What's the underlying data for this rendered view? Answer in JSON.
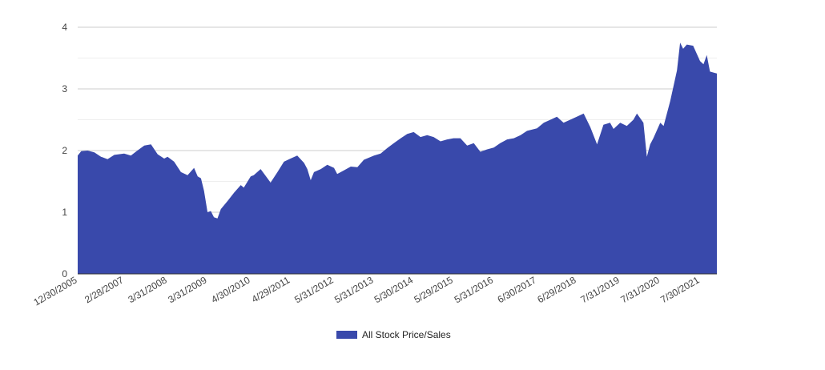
{
  "chart_data": {
    "type": "area",
    "title": "",
    "xlabel": "",
    "ylabel": "",
    "ylim": [
      0,
      4
    ],
    "yticks": [
      "0",
      "1",
      "2",
      "3",
      "4"
    ],
    "ytick_values": [
      0,
      1,
      2,
      3,
      4
    ],
    "grid": true,
    "legend_position": "bottom-center",
    "x_tick_labels": [
      "12/30/2005",
      "2/28/2007",
      "3/31/2008",
      "3/31/2009",
      "4/30/2010",
      "4/29/2011",
      "5/31/2012",
      "5/31/2013",
      "5/30/2014",
      "5/29/2015",
      "5/31/2016",
      "6/30/2017",
      "6/29/2018",
      "7/31/2019",
      "7/31/2020",
      "7/30/2021"
    ],
    "x_range": [
      "12/30/2005",
      "12/31/2021"
    ],
    "series": [
      {
        "name": "All Stock Price/Sales",
        "color": "#3949ab",
        "points": [
          [
            "12/30/2005",
            1.92
          ],
          [
            "1/31/2006",
            1.99
          ],
          [
            "3/31/2006",
            2.0
          ],
          [
            "5/31/2006",
            1.97
          ],
          [
            "7/31/2006",
            1.9
          ],
          [
            "9/29/2006",
            1.86
          ],
          [
            "11/30/2006",
            1.93
          ],
          [
            "2/28/2007",
            1.95
          ],
          [
            "4/30/2007",
            1.92
          ],
          [
            "6/29/2007",
            2.0
          ],
          [
            "8/31/2007",
            2.08
          ],
          [
            "10/31/2007",
            2.1
          ],
          [
            "12/31/2007",
            1.94
          ],
          [
            "2/29/2008",
            1.87
          ],
          [
            "3/31/2008",
            1.9
          ],
          [
            "5/30/2008",
            1.82
          ],
          [
            "7/31/2008",
            1.65
          ],
          [
            "9/30/2008",
            1.6
          ],
          [
            "11/28/2008",
            1.72
          ],
          [
            "12/31/2008",
            1.58
          ],
          [
            "1/30/2009",
            1.55
          ],
          [
            "2/27/2009",
            1.35
          ],
          [
            "3/31/2009",
            1.0
          ],
          [
            "4/30/2009",
            1.02
          ],
          [
            "5/29/2009",
            0.92
          ],
          [
            "6/30/2009",
            0.9
          ],
          [
            "7/31/2009",
            1.05
          ],
          [
            "9/30/2009",
            1.18
          ],
          [
            "11/30/2009",
            1.32
          ],
          [
            "1/29/2010",
            1.44
          ],
          [
            "2/26/2010",
            1.4
          ],
          [
            "4/30/2010",
            1.58
          ],
          [
            "5/28/2010",
            1.6
          ],
          [
            "7/30/2010",
            1.7
          ],
          [
            "9/30/2010",
            1.55
          ],
          [
            "10/29/2010",
            1.48
          ],
          [
            "12/31/2010",
            1.65
          ],
          [
            "2/28/2011",
            1.82
          ],
          [
            "4/29/2011",
            1.87
          ],
          [
            "6/30/2011",
            1.92
          ],
          [
            "8/31/2011",
            1.8
          ],
          [
            "9/30/2011",
            1.7
          ],
          [
            "10/31/2011",
            1.52
          ],
          [
            "11/30/2011",
            1.65
          ],
          [
            "1/31/2012",
            1.7
          ],
          [
            "3/30/2012",
            1.77
          ],
          [
            "5/31/2012",
            1.72
          ],
          [
            "6/29/2012",
            1.62
          ],
          [
            "8/31/2012",
            1.68
          ],
          [
            "10/31/2012",
            1.74
          ],
          [
            "12/31/2012",
            1.73
          ],
          [
            "2/28/2013",
            1.85
          ],
          [
            "5/31/2013",
            1.92
          ],
          [
            "7/31/2013",
            1.95
          ],
          [
            "9/30/2013",
            2.04
          ],
          [
            "11/29/2013",
            2.12
          ],
          [
            "1/31/2014",
            2.2
          ],
          [
            "3/31/2014",
            2.27
          ],
          [
            "5/30/2014",
            2.3
          ],
          [
            "7/31/2014",
            2.22
          ],
          [
            "9/30/2014",
            2.25
          ],
          [
            "11/28/2014",
            2.22
          ],
          [
            "1/30/2015",
            2.15
          ],
          [
            "3/31/2015",
            2.18
          ],
          [
            "5/29/2015",
            2.2
          ],
          [
            "7/31/2015",
            2.2
          ],
          [
            "9/30/2015",
            2.08
          ],
          [
            "11/30/2015",
            2.12
          ],
          [
            "1/29/2016",
            1.98
          ],
          [
            "3/31/2016",
            2.02
          ],
          [
            "5/31/2016",
            2.05
          ],
          [
            "7/29/2016",
            2.12
          ],
          [
            "9/30/2016",
            2.18
          ],
          [
            "11/30/2016",
            2.2
          ],
          [
            "1/31/2017",
            2.25
          ],
          [
            "3/31/2017",
            2.32
          ],
          [
            "6/30/2017",
            2.36
          ],
          [
            "8/31/2017",
            2.45
          ],
          [
            "10/31/2017",
            2.5
          ],
          [
            "12/29/2017",
            2.55
          ],
          [
            "2/28/2018",
            2.45
          ],
          [
            "4/30/2018",
            2.5
          ],
          [
            "6/29/2018",
            2.55
          ],
          [
            "8/31/2018",
            2.6
          ],
          [
            "10/31/2018",
            2.38
          ],
          [
            "12/31/2018",
            2.1
          ],
          [
            "2/28/2019",
            2.42
          ],
          [
            "4/30/2019",
            2.45
          ],
          [
            "5/31/2019",
            2.35
          ],
          [
            "7/31/2019",
            2.45
          ],
          [
            "9/30/2019",
            2.4
          ],
          [
            "11/29/2019",
            2.5
          ],
          [
            "12/31/2019",
            2.6
          ],
          [
            "2/28/2020",
            2.45
          ],
          [
            "3/31/2020",
            1.9
          ],
          [
            "4/30/2020",
            2.1
          ],
          [
            "5/29/2020",
            2.2
          ],
          [
            "7/31/2020",
            2.45
          ],
          [
            "8/31/2020",
            2.4
          ],
          [
            "10/30/2020",
            2.8
          ],
          [
            "12/31/2020",
            3.3
          ],
          [
            "1/29/2021",
            3.75
          ],
          [
            "2/26/2021",
            3.65
          ],
          [
            "3/31/2021",
            3.72
          ],
          [
            "5/28/2021",
            3.7
          ],
          [
            "7/30/2021",
            3.45
          ],
          [
            "8/31/2021",
            3.4
          ],
          [
            "9/30/2021",
            3.55
          ],
          [
            "10/29/2021",
            3.28
          ],
          [
            "12/31/2021",
            3.25
          ]
        ]
      }
    ]
  }
}
